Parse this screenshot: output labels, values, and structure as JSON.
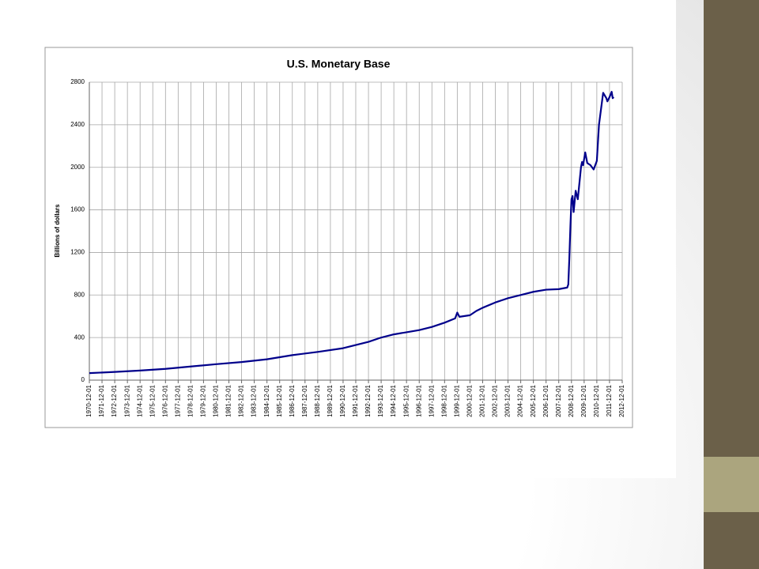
{
  "chart_data": {
    "type": "line",
    "title": "U.S. Monetary Base",
    "y_label": "Billions of dollars",
    "x": [
      "1970-12-01",
      "1972-12-01",
      "1974-12-01",
      "1976-12-01",
      "1978-12-01",
      "1980-12-01",
      "1982-12-01",
      "1984-12-01",
      "1986-12-01",
      "1988-12-01",
      "1990-12-01",
      "1992-12-01",
      "1993-12-01",
      "1994-12-01",
      "1995-12-01",
      "1996-12-01",
      "1997-12-01",
      "1998-12-01",
      "1999-10-01",
      "1999-12-01",
      "2000-02-01",
      "2000-12-01",
      "2001-06-01",
      "2001-12-01",
      "2002-12-01",
      "2003-12-01",
      "2004-12-01",
      "2005-12-01",
      "2006-12-01",
      "2007-12-01",
      "2008-08-01",
      "2008-09-01",
      "2008-10-01",
      "2008-11-01",
      "2008-12-01",
      "2009-01-01",
      "2009-02-01",
      "2009-04-01",
      "2009-06-01",
      "2009-09-01",
      "2009-10-01",
      "2009-11-01",
      "2010-01-01",
      "2010-03-01",
      "2010-06-01",
      "2010-09-01",
      "2010-12-01",
      "2011-02-01",
      "2011-06-01",
      "2011-09-01",
      "2011-10-01",
      "2011-12-01",
      "2012-02-01",
      "2012-03-01",
      "2012-04-01"
    ],
    "series": [
      {
        "name": "Monetary Base",
        "color": "#00008b",
        "values": [
          66,
          77,
          90,
          106,
          128,
          150,
          170,
          196,
          235,
          265,
          300,
          360,
          400,
          430,
          450,
          470,
          500,
          540,
          580,
          635,
          595,
          610,
          650,
          680,
          730,
          770,
          800,
          830,
          850,
          855,
          870,
          900,
          1150,
          1450,
          1700,
          1730,
          1580,
          1780,
          1700,
          2000,
          2050,
          2020,
          2140,
          2040,
          2020,
          1980,
          2060,
          2400,
          2700,
          2650,
          2620,
          2660,
          2710,
          2650,
          2660
        ]
      }
    ],
    "xlim": [
      "1970-12-01",
      "2012-12-01"
    ],
    "xticks": [
      "1970-12-01",
      "1971-12-01",
      "1972-12-01",
      "1973-12-01",
      "1974-12-01",
      "1975-12-01",
      "1976-12-01",
      "1977-12-01",
      "1978-12-01",
      "1979-12-01",
      "1980-12-01",
      "1981-12-01",
      "1982-12-01",
      "1983-12-01",
      "1984-12-01",
      "1985-12-01",
      "1986-12-01",
      "1987-12-01",
      "1988-12-01",
      "1989-12-01",
      "1990-12-01",
      "1991-12-01",
      "1992-12-01",
      "1993-12-01",
      "1994-12-01",
      "1995-12-01",
      "1996-12-01",
      "1997-12-01",
      "1998-12-01",
      "1999-12-01",
      "2000-12-01",
      "2001-12-01",
      "2002-12-01",
      "2003-12-01",
      "2004-12-01",
      "2005-12-01",
      "2006-12-01",
      "2007-12-01",
      "2008-12-01",
      "2009-12-01",
      "2010-12-01",
      "2011-12-01",
      "2012-12-01"
    ],
    "ylim": [
      0,
      2800
    ],
    "yticks": [
      0,
      400,
      800,
      1200,
      1600,
      2000,
      2400,
      2800
    ],
    "grid": true
  }
}
